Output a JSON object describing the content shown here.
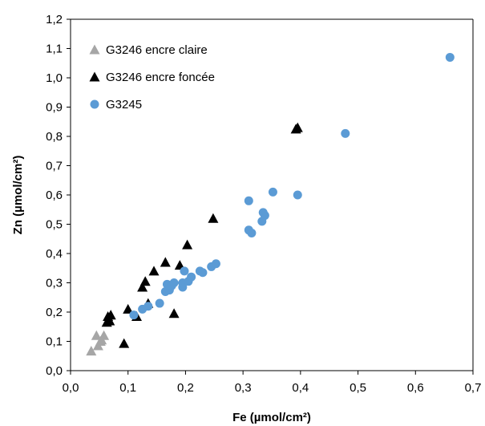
{
  "chart_data": {
    "type": "scatter",
    "xlabel": "Fe (µmol/cm²)",
    "ylabel": "Zn (µmol/cm²)",
    "xlim": [
      0,
      0.7
    ],
    "ylim": [
      0,
      1.2
    ],
    "xticks": [
      0,
      0.1,
      0.2,
      0.3,
      0.4,
      0.5,
      0.6,
      0.7
    ],
    "yticks": [
      0,
      0.1,
      0.2,
      0.3,
      0.4,
      0.5,
      0.6,
      0.7,
      0.8,
      0.9,
      1.0,
      1.1,
      1.2
    ],
    "xtick_labels": [
      "0,0",
      "0,1",
      "0,2",
      "0,3",
      "0,4",
      "0,5",
      "0,6",
      "0,7"
    ],
    "ytick_labels": [
      "0,0",
      "0,1",
      "0,2",
      "0,3",
      "0,4",
      "0,5",
      "0,6",
      "0,7",
      "0,8",
      "0,9",
      "1,0",
      "1,1",
      "1,2"
    ],
    "grid": false,
    "legend_position": "top-left",
    "series": [
      {
        "name": "G3246 encre claire",
        "marker": "triangle",
        "color": "#a6a6a6",
        "points": [
          [
            0.036,
            0.067
          ],
          [
            0.045,
            0.12
          ],
          [
            0.048,
            0.085
          ],
          [
            0.052,
            0.1
          ],
          [
            0.054,
            0.105
          ],
          [
            0.058,
            0.12
          ]
        ]
      },
      {
        "name": "G3246 encre foncée",
        "marker": "triangle",
        "color": "#000000",
        "points": [
          [
            0.063,
            0.165
          ],
          [
            0.065,
            0.185
          ],
          [
            0.068,
            0.17
          ],
          [
            0.07,
            0.19
          ],
          [
            0.093,
            0.093
          ],
          [
            0.1,
            0.21
          ],
          [
            0.115,
            0.185
          ],
          [
            0.125,
            0.285
          ],
          [
            0.13,
            0.305
          ],
          [
            0.135,
            0.23
          ],
          [
            0.145,
            0.34
          ],
          [
            0.165,
            0.37
          ],
          [
            0.18,
            0.195
          ],
          [
            0.19,
            0.36
          ],
          [
            0.203,
            0.43
          ],
          [
            0.248,
            0.52
          ],
          [
            0.392,
            0.825
          ],
          [
            0.395,
            0.83
          ]
        ]
      },
      {
        "name": "G3245",
        "marker": "circle",
        "color": "#5b9bd5",
        "points": [
          [
            0.11,
            0.19
          ],
          [
            0.125,
            0.21
          ],
          [
            0.135,
            0.22
          ],
          [
            0.155,
            0.23
          ],
          [
            0.165,
            0.27
          ],
          [
            0.168,
            0.295
          ],
          [
            0.172,
            0.275
          ],
          [
            0.176,
            0.29
          ],
          [
            0.18,
            0.3
          ],
          [
            0.195,
            0.285
          ],
          [
            0.195,
            0.3
          ],
          [
            0.198,
            0.34
          ],
          [
            0.205,
            0.305
          ],
          [
            0.21,
            0.32
          ],
          [
            0.225,
            0.34
          ],
          [
            0.23,
            0.335
          ],
          [
            0.245,
            0.355
          ],
          [
            0.253,
            0.365
          ],
          [
            0.31,
            0.48
          ],
          [
            0.31,
            0.58
          ],
          [
            0.315,
            0.47
          ],
          [
            0.333,
            0.51
          ],
          [
            0.335,
            0.54
          ],
          [
            0.338,
            0.53
          ],
          [
            0.352,
            0.61
          ],
          [
            0.395,
            0.6
          ],
          [
            0.478,
            0.81
          ],
          [
            0.66,
            1.07
          ]
        ]
      }
    ]
  }
}
